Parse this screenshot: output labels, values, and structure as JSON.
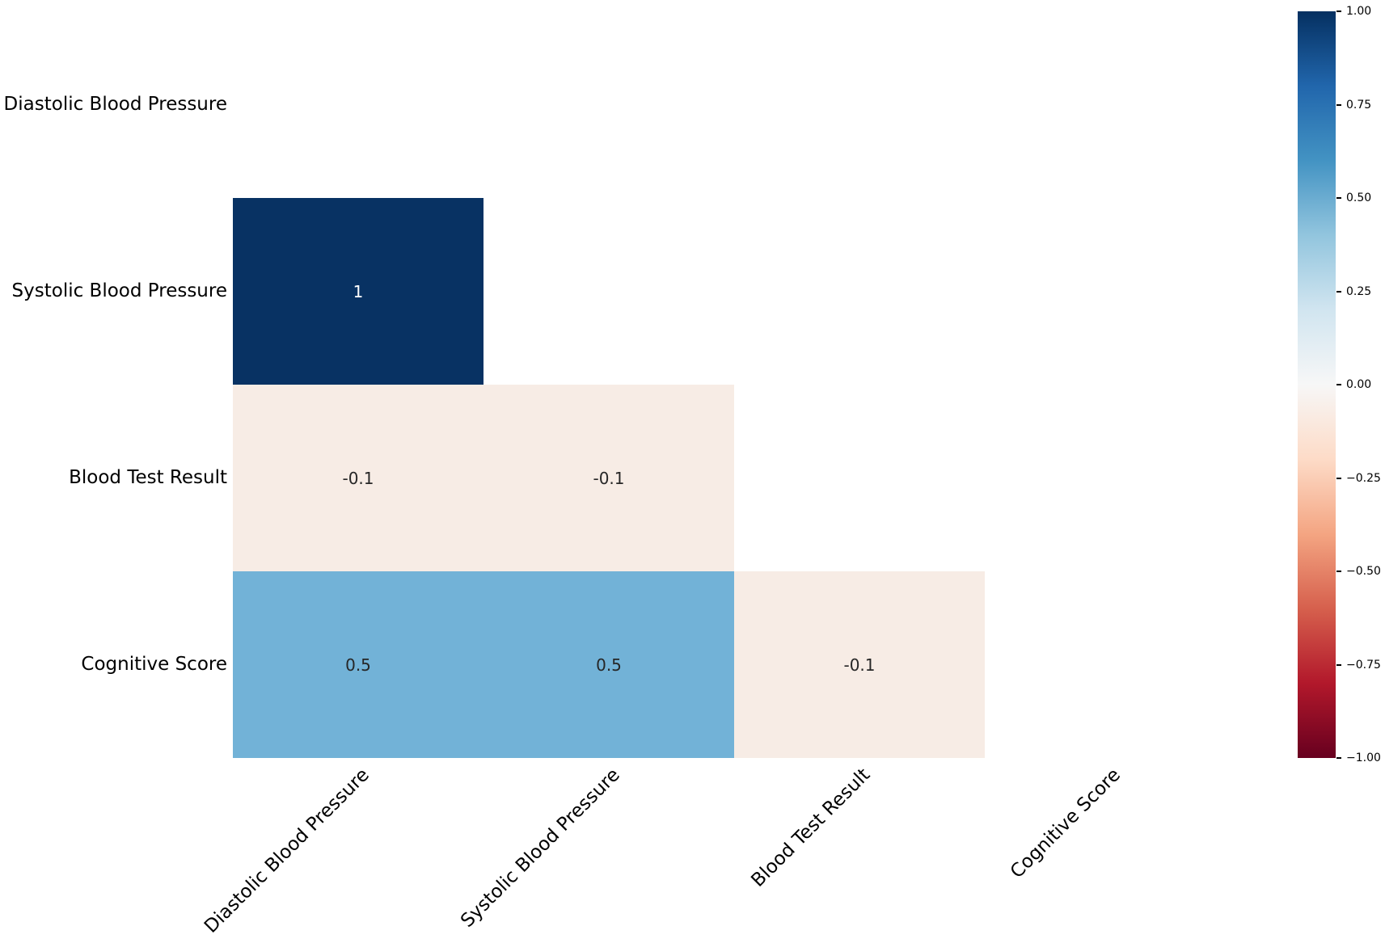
{
  "figure": {
    "background": "#ffffff"
  },
  "chart_data": {
    "type": "heatmap",
    "subtype": "correlation-matrix-lower-triangle-masked",
    "title": "",
    "variables": [
      "Diastolic Blood Pressure",
      "Systolic Blood Pressure",
      "Blood Test Result",
      "Cognitive Score"
    ],
    "y_tick_labels": [
      "Diastolic Blood Pressure",
      "Systolic Blood Pressure",
      "Blood Test Result",
      "Cognitive Score"
    ],
    "x_tick_labels": [
      "Diastolic Blood Pressure",
      "Systolic Blood Pressure",
      "Blood Test Result",
      "Cognitive Score"
    ],
    "x_tick_rotation_deg": 45,
    "grid": "off",
    "cells": [
      {
        "row": 1,
        "col": 0,
        "row_label": "Systolic Blood Pressure",
        "col_label": "Diastolic Blood Pressure",
        "value": 1,
        "label": "1",
        "bg": "#083263",
        "fg": "#ffffff"
      },
      {
        "row": 2,
        "col": 0,
        "row_label": "Blood Test Result",
        "col_label": "Diastolic Blood Pressure",
        "value": -0.1,
        "label": "-0.1",
        "bg": "#f7ece5",
        "fg": "#262626"
      },
      {
        "row": 2,
        "col": 1,
        "row_label": "Blood Test Result",
        "col_label": "Systolic Blood Pressure",
        "value": -0.1,
        "label": "-0.1",
        "bg": "#f7ece5",
        "fg": "#262626"
      },
      {
        "row": 3,
        "col": 0,
        "row_label": "Cognitive Score",
        "col_label": "Diastolic Blood Pressure",
        "value": 0.5,
        "label": "0.5",
        "bg": "#72b2d7",
        "fg": "#262626"
      },
      {
        "row": 3,
        "col": 1,
        "row_label": "Cognitive Score",
        "col_label": "Systolic Blood Pressure",
        "value": 0.5,
        "label": "0.5",
        "bg": "#72b2d7",
        "fg": "#262626"
      },
      {
        "row": 3,
        "col": 2,
        "row_label": "Cognitive Score",
        "col_label": "Blood Test Result",
        "value": -0.1,
        "label": "-0.1",
        "bg": "#f7ece5",
        "fg": "#262626"
      }
    ],
    "colorbar": {
      "cmap": "RdBu",
      "vmin": -1.0,
      "vmax": 1.0,
      "position": "right",
      "tick_labels": [
        "1.00",
        "0.75",
        "0.50",
        "0.25",
        "0.00",
        "−0.25",
        "−0.50",
        "−0.75",
        "−1.00"
      ],
      "gradient_top_to_bottom": [
        "#053061",
        "#2166ac",
        "#4393c3",
        "#92c5de",
        "#d1e5f0",
        "#f7f7f7",
        "#fddbc7",
        "#f4a582",
        "#d6604d",
        "#b2182b",
        "#67001f"
      ]
    }
  }
}
